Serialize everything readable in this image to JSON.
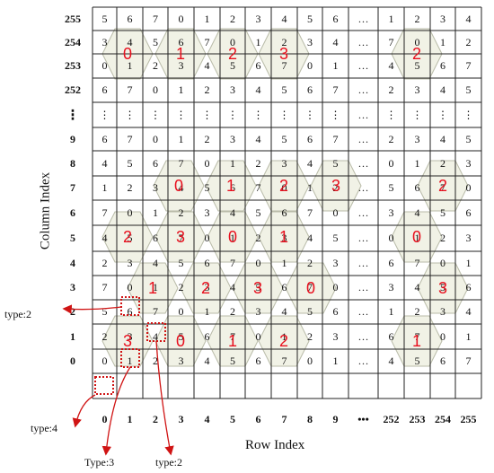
{
  "grid": {
    "column_index_labels": [
      "255",
      "254",
      "253",
      "252",
      "⁝",
      "9",
      "8",
      "7",
      "6",
      "5",
      "4",
      "3",
      "2",
      "1",
      "0"
    ],
    "row_index_labels": [
      "0",
      "1",
      "2",
      "3",
      "4",
      "5",
      "6",
      "7",
      "8",
      "9",
      "•••",
      "252",
      "253",
      "254",
      "255"
    ],
    "cells": [
      [
        "5",
        "6",
        "7",
        "0",
        "1",
        "2",
        "3",
        "4",
        "5",
        "6",
        "…",
        "1",
        "2",
        "3",
        "4"
      ],
      [
        "3",
        "4",
        "5",
        "6",
        "7",
        "0",
        "1",
        "2",
        "3",
        "4",
        "…",
        "7",
        "0",
        "1",
        "2"
      ],
      [
        "0",
        "1",
        "2",
        "3",
        "4",
        "5",
        "6",
        "7",
        "0",
        "1",
        "…",
        "4",
        "5",
        "6",
        "7"
      ],
      [
        "6",
        "7",
        "0",
        "1",
        "2",
        "3",
        "4",
        "5",
        "6",
        "7",
        "…",
        "2",
        "3",
        "4",
        "5"
      ],
      [
        "⋮",
        "⋮",
        "⋮",
        "⋮",
        "⋮",
        "⋮",
        "⋮",
        "⋮",
        "⋮",
        "⋮",
        "…",
        "⋮",
        "⋮",
        "⋮",
        "⋮"
      ],
      [
        "6",
        "7",
        "0",
        "1",
        "2",
        "3",
        "4",
        "5",
        "6",
        "7",
        "…",
        "2",
        "3",
        "4",
        "5"
      ],
      [
        "4",
        "5",
        "6",
        "7",
        "0",
        "1",
        "2",
        "3",
        "4",
        "5",
        "…",
        "0",
        "1",
        "2",
        "3"
      ],
      [
        "1",
        "2",
        "3",
        "4",
        "5",
        "6",
        "7",
        "0",
        "1",
        "2",
        "…",
        "5",
        "6",
        "7",
        "0"
      ],
      [
        "7",
        "0",
        "1",
        "2",
        "3",
        "4",
        "5",
        "6",
        "7",
        "0",
        "…",
        "3",
        "4",
        "5",
        "6"
      ],
      [
        "4",
        "5",
        "6",
        "7",
        "0",
        "1",
        "2",
        "3",
        "4",
        "5",
        "…",
        "0",
        "1",
        "2",
        "3"
      ],
      [
        "2",
        "3",
        "4",
        "5",
        "6",
        "7",
        "0",
        "1",
        "2",
        "3",
        "…",
        "6",
        "7",
        "0",
        "1"
      ],
      [
        "7",
        "0",
        "1",
        "2",
        "3",
        "4",
        "5",
        "6",
        "7",
        "0",
        "…",
        "3",
        "4",
        "5",
        "6"
      ],
      [
        "5",
        "6",
        "7",
        "0",
        "1",
        "2",
        "3",
        "4",
        "5",
        "6",
        "…",
        "1",
        "2",
        "3",
        "4"
      ],
      [
        "2",
        "3",
        "4",
        "5",
        "6",
        "7",
        "0",
        "1",
        "2",
        "3",
        "…",
        "6",
        "7",
        "0",
        "1"
      ],
      [
        "0",
        "1",
        "2",
        "3",
        "4",
        "5",
        "6",
        "7",
        "0",
        "1",
        "…",
        "4",
        "5",
        "6",
        "7"
      ]
    ]
  },
  "axis": {
    "x_title": "Row Index",
    "y_title": "Column Index"
  },
  "block_labels": [
    "0",
    "1",
    "2",
    "3",
    "2",
    "0",
    "1",
    "2",
    "3",
    "2",
    "2",
    "3",
    "0",
    "1",
    "0",
    "1",
    "2",
    "3",
    "0",
    "3",
    "3",
    "0",
    "1",
    "2",
    "1"
  ],
  "types": [
    "type:2",
    "type:4",
    "Type:3",
    "type:2"
  ],
  "colors": {
    "hex_fill": "#eef0e2",
    "hex_stroke": "#b9bba8",
    "label": "#e8101e",
    "marker": "#d01414"
  }
}
